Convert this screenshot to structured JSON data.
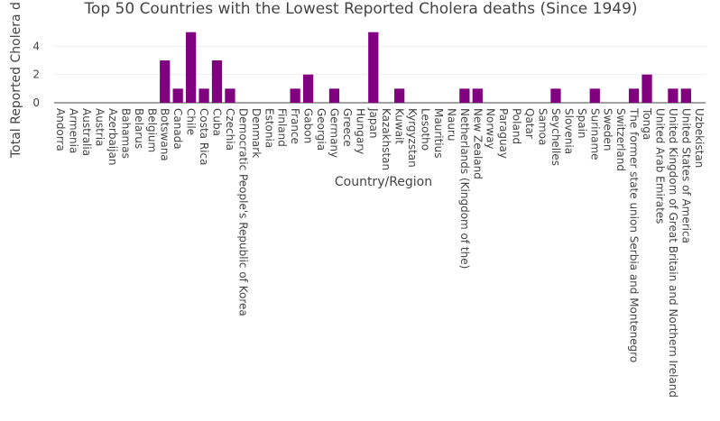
{
  "chart_data": {
    "type": "bar",
    "title": "Top 50 Countries with the Lowest Reported Cholera deaths (Since 1949)",
    "xlabel": "Country/Region",
    "ylabel": "Total Reported Cholera d",
    "ylim": [
      0,
      5.3
    ],
    "yticks": [
      0,
      2,
      4
    ],
    "grid": true,
    "bar_color": "#800080",
    "categories": [
      "Andorra",
      "Armenia",
      "Australia",
      "Austria",
      "Azerbaijan",
      "Bahamas",
      "Belarus",
      "Belgium",
      "Botswana",
      "Canada",
      "Chile",
      "Costa Rica",
      "Cuba",
      "Czechia",
      "Democratic People's Republic of Korea",
      "Denmark",
      "Estonia",
      "Finland",
      "France",
      "Gabon",
      "Georgia",
      "Germany",
      "Greece",
      "Hungary",
      "Japan",
      "Kazakhstan",
      "Kuwait",
      "Kyrgyzstan",
      "Lesotho",
      "Mauritius",
      "Nauru",
      "Netherlands (Kingdom of the)",
      "New Zealand",
      "Norway",
      "Paraguay",
      "Poland",
      "Qatar",
      "Samoa",
      "Seychelles",
      "Slovenia",
      "Spain",
      "Suriname",
      "Sweden",
      "Switzerland",
      "The former state union Serbia and Montenegro",
      "Tonga",
      "United Arab Emirates",
      "United Kingdom of Great Britain and Northern Ireland",
      "United States of America",
      "Uzbekistan"
    ],
    "values": [
      0,
      0,
      0,
      0,
      0,
      0,
      0,
      0,
      3,
      1,
      5,
      1,
      3,
      1,
      0,
      0,
      0,
      0,
      1,
      2,
      0,
      1,
      0,
      0,
      5,
      0,
      1,
      0,
      0,
      0,
      0,
      1,
      1,
      0,
      0,
      0,
      0,
      0,
      1,
      0,
      0,
      1,
      0,
      0,
      1,
      2,
      0,
      1,
      1,
      0
    ]
  }
}
